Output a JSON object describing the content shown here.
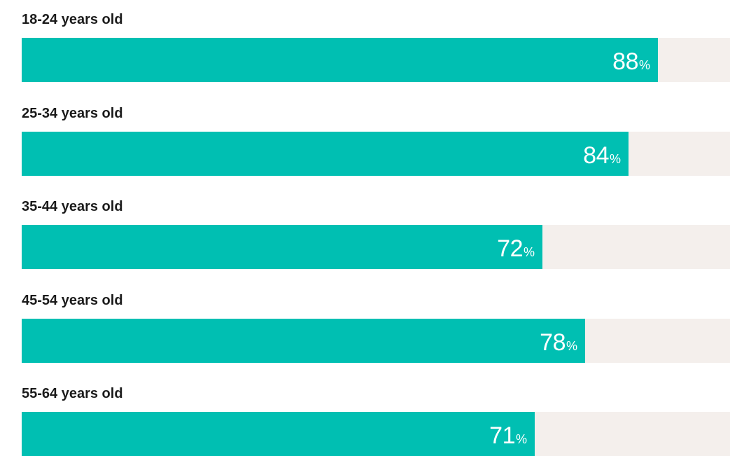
{
  "chart_data": {
    "type": "bar",
    "orientation": "horizontal",
    "categories": [
      "18-24 years old",
      "25-34 years old",
      "35-44 years old",
      "45-54 years old",
      "55-64 years old"
    ],
    "values": [
      88,
      84,
      72,
      78,
      71
    ],
    "unit": "%",
    "xlim": [
      0,
      98
    ],
    "title": "",
    "xlabel": "",
    "ylabel": "",
    "grid": false,
    "legend": "none",
    "colors": {
      "bar": "#00bfb2",
      "track": "#f4efec",
      "label_text": "#1b1b1b",
      "value_text": "#ffffff"
    }
  }
}
